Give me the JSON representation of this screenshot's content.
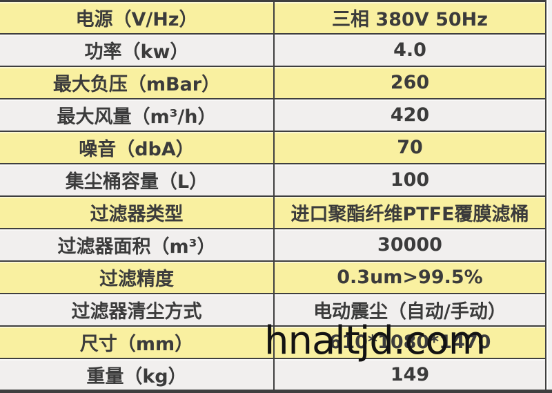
{
  "colors": {
    "row_yellow": "#f9f0a0",
    "row_white": "#f1efee",
    "border": "#3f3f3f",
    "text": "#3b3b3b",
    "watermark": "#131313"
  },
  "watermark": {
    "text": "hnaltjd.com"
  },
  "table": {
    "rows": [
      {
        "label": "电源（V/Hz）",
        "value": "三相 380V 50Hz",
        "tone": "yellow"
      },
      {
        "label": "功率（kw）",
        "value": "4.0",
        "tone": "white"
      },
      {
        "label": "最大负压（mBar）",
        "value": "260",
        "tone": "yellow"
      },
      {
        "label": "最大风量（m³/h）",
        "value": "420",
        "tone": "white"
      },
      {
        "label": "噪音（dbA）",
        "value": "70",
        "tone": "yellow"
      },
      {
        "label": "集尘桶容量（L）",
        "value": "100",
        "tone": "white"
      },
      {
        "label": "过滤器类型",
        "value": "进口聚酯纤维PTFE覆膜滤桶",
        "tone": "yellow"
      },
      {
        "label": "过滤器面积（m³）",
        "value": "30000",
        "tone": "white"
      },
      {
        "label": "过滤精度",
        "value": "0.3um>99.5%",
        "tone": "yellow"
      },
      {
        "label": "过滤器清尘方式",
        "value": "电动震尘（自动/手动）",
        "tone": "white"
      },
      {
        "label": "尺寸（mm）",
        "value": "610*1080*1470",
        "tone": "yellow"
      },
      {
        "label": "重量（kg）",
        "value": "149",
        "tone": "white"
      }
    ]
  }
}
